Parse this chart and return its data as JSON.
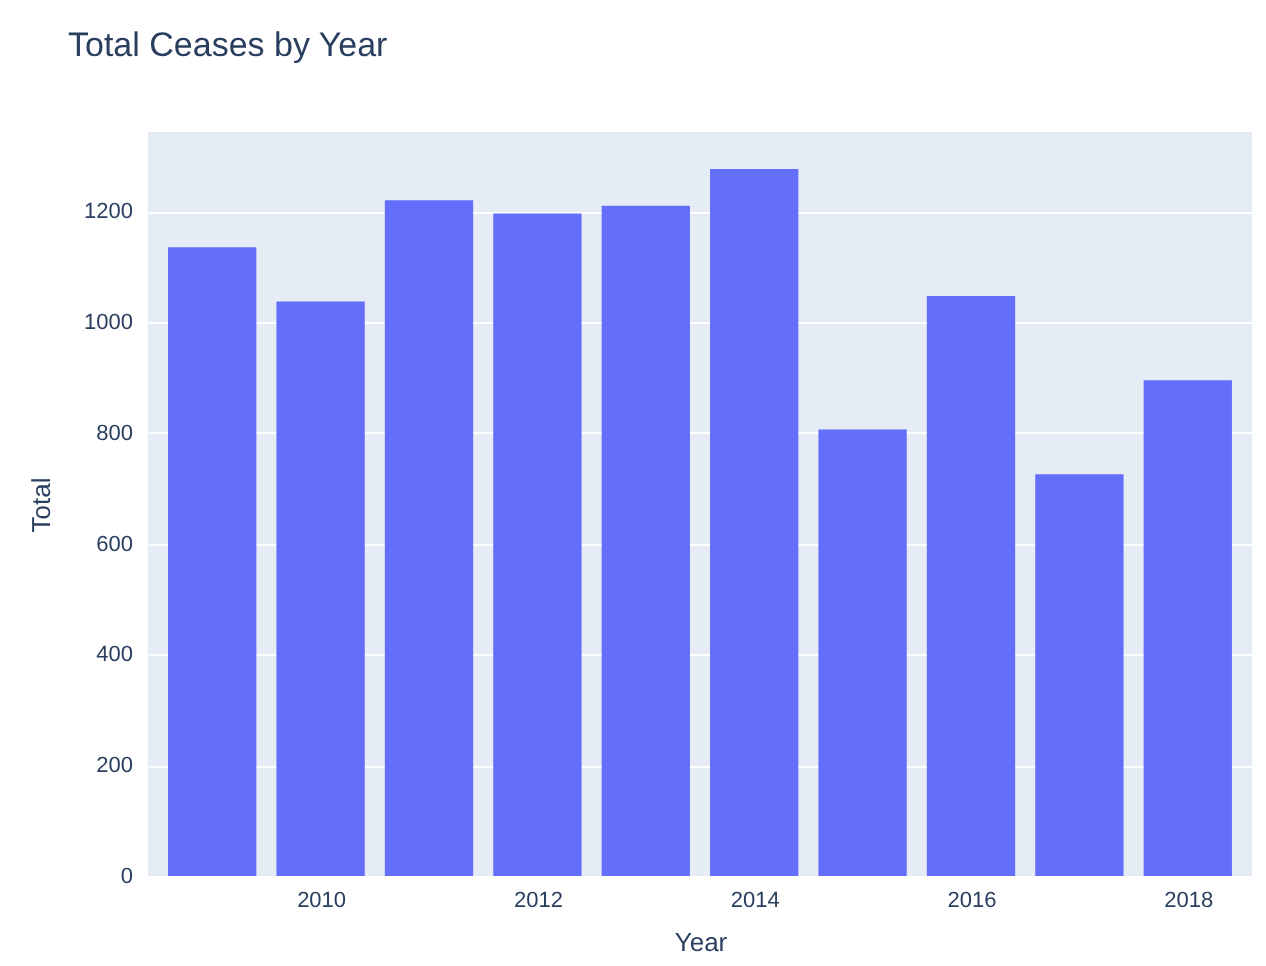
{
  "chart_data": {
    "type": "bar",
    "title": "Total Ceases by Year",
    "xlabel": "Year",
    "ylabel": "Total",
    "x": [
      2009,
      2010,
      2011,
      2012,
      2013,
      2014,
      2015,
      2016,
      2017,
      2018
    ],
    "values": [
      1135,
      1037,
      1220,
      1196,
      1210,
      1276,
      806,
      1047,
      725,
      895
    ],
    "color": "#636efa",
    "xlim": [
      2008.5,
      2018.5
    ],
    "xticks": [
      2010,
      2012,
      2014,
      2016,
      2018
    ],
    "ylim": [
      0,
      1343
    ],
    "yticks": [
      0,
      200,
      400,
      600,
      800,
      1000,
      1200
    ],
    "grid": "y"
  }
}
